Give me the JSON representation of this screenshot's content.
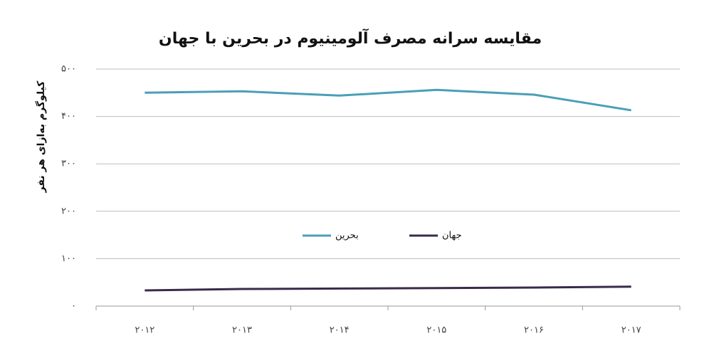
{
  "chart_data": {
    "type": "line",
    "title": "مقایسه سرانه مصرف آلومینیوم در بحرین با جهان",
    "y_label": "کیلوگرم به‌ازای هر نفر",
    "categories": [
      "۲۰۱۲",
      "۲۰۱۳",
      "۲۰۱۴",
      "۲۰۱۵",
      "۲۰۱۶",
      "۲۰۱۷"
    ],
    "series": [
      {
        "name": "بحرین",
        "color": "#4a9fb8",
        "values": [
          450,
          453,
          444,
          456,
          446,
          413
        ]
      },
      {
        "name": "جهان",
        "color": "#3b2a4a",
        "values": [
          33,
          36,
          37,
          38,
          39,
          41
        ]
      }
    ],
    "ylim": [
      0,
      500
    ],
    "yticks": [
      {
        "value": 0,
        "label": "۰"
      },
      {
        "value": 100,
        "label": "۱۰۰"
      },
      {
        "value": 200,
        "label": "۲۰۰"
      },
      {
        "value": 300,
        "label": "۳۰۰"
      },
      {
        "value": 400,
        "label": "۴۰۰"
      },
      {
        "value": 500,
        "label": "۵۰۰"
      }
    ],
    "grid": true,
    "legend_position": "center"
  }
}
